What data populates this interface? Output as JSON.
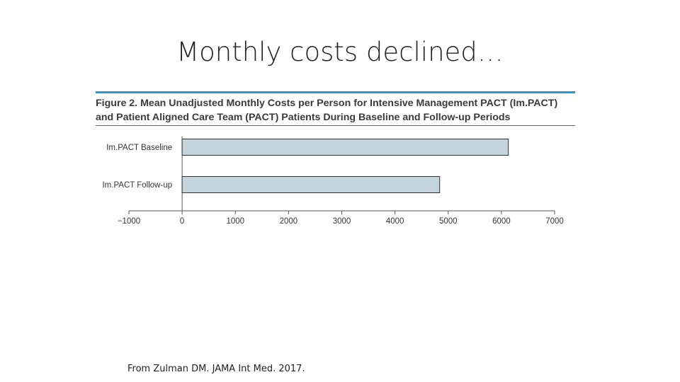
{
  "slide": {
    "title": "Monthly costs declined…",
    "source": "From Zulman DM. JAMA Int Med. 2017."
  },
  "figure": {
    "caption_line1": "Figure 2. Mean Unadjusted Monthly Costs per Person for Intensive Management PACT (Im.PACT)",
    "caption_line2": "and Patient Aligned Care Team (PACT) Patients During Baseline and Follow-up Periods",
    "accent_color": "#2e95c6"
  },
  "chart_data": {
    "type": "bar",
    "orientation": "horizontal",
    "categories": [
      "Im.PACT Baseline",
      "Im.PACT Follow-up"
    ],
    "values": [
      6130,
      4840
    ],
    "xlim": [
      -1000,
      7000
    ],
    "xticks": [
      -1000,
      0,
      1000,
      2000,
      3000,
      4000,
      5000,
      6000,
      7000
    ],
    "xtick_labels": [
      "−1000",
      "0",
      "1000",
      "2000",
      "3000",
      "4000",
      "5000",
      "6000",
      "7000"
    ],
    "bar_color": "#c3d4dd",
    "grid": false
  }
}
